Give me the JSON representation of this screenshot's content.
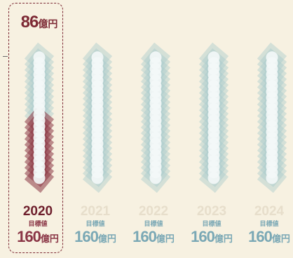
{
  "chart_data": {
    "type": "bar",
    "categories": [
      "2020",
      "2021",
      "2022",
      "2023",
      "2024"
    ],
    "series": [
      {
        "name": "目標値",
        "values": [
          160,
          160,
          160,
          160,
          160
        ]
      }
    ],
    "actual": {
      "category": "2020",
      "value": 86,
      "value_text": "86",
      "unit": "億円"
    },
    "target_label": "目標値",
    "target_value_text": "160",
    "unit": "億円",
    "highlighted_category": "2020",
    "colors": {
      "background": "#f7f1e1",
      "target_fill": "#a5c7cb",
      "actual_fill": "#8b3444",
      "accent": "#7d2a35",
      "future_year_text": "#e7decb",
      "target_text": "#7aa8b5"
    }
  }
}
